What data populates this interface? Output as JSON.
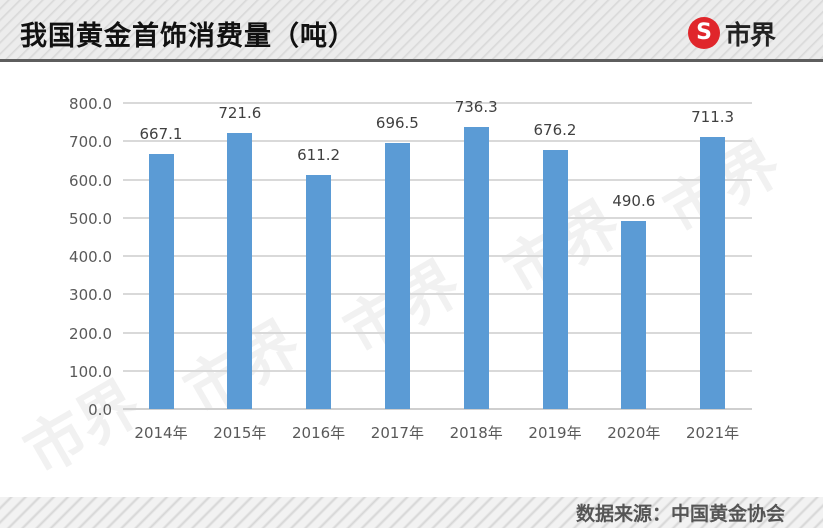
{
  "header": {
    "title": "我国黄金首饰消费量（吨）",
    "logo_symbol": "S",
    "logo_text": "市界"
  },
  "footer": {
    "source": "数据来源：中国黄金协会"
  },
  "watermark": "市界",
  "colors": {
    "bar": "#5b9bd5",
    "logo_red": "#e0262b",
    "header_border": "#5e5e5e"
  },
  "chart_data": {
    "type": "bar",
    "title": "我国黄金首饰消费量（吨）",
    "xlabel": "",
    "ylabel": "吨",
    "categories": [
      "2014年",
      "2015年",
      "2016年",
      "2017年",
      "2018年",
      "2019年",
      "2020年",
      "2021年"
    ],
    "values": [
      667.1,
      721.6,
      611.2,
      696.5,
      736.3,
      676.2,
      490.6,
      711.3
    ],
    "value_labels": [
      "667.1",
      "721.6",
      "611.2",
      "696.5",
      "736.3",
      "676.2",
      "490.6",
      "711.3"
    ],
    "yticks": [
      "0.0",
      "100.0",
      "200.0",
      "300.0",
      "400.0",
      "500.0",
      "600.0",
      "700.0",
      "800.0"
    ],
    "ylim": [
      0,
      800
    ],
    "grid": true,
    "legend": "none",
    "source": "数据来源：中国黄金协会"
  }
}
